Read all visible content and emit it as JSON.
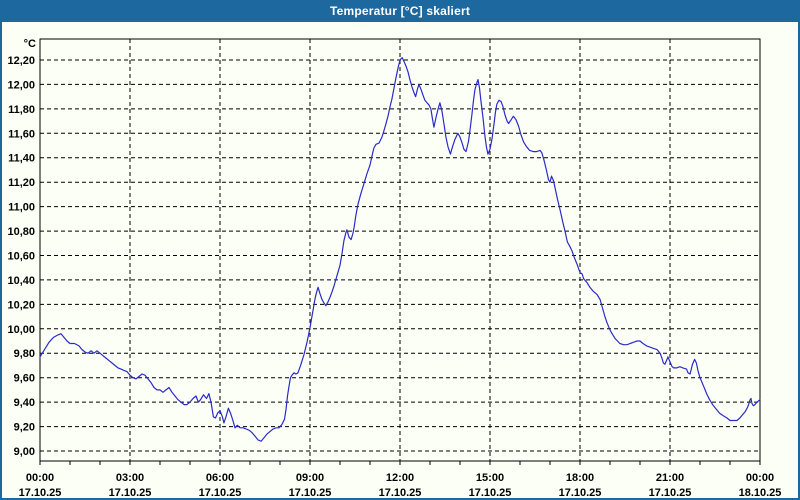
{
  "window": {
    "title": "Temperatur [°C] skaliert",
    "titlebar_color": "#1D689E",
    "border_color": "#1D689E",
    "background_color": "#FCFFF6",
    "title_text_color": "#FFFFFF"
  },
  "chart_data": {
    "type": "line",
    "title": "Temperatur [°C] skaliert",
    "unit_label": "°C",
    "line_color": "#2B2BC8",
    "grid_color": "#000000",
    "grid_style": "dashed",
    "legend": "none",
    "axes": {
      "y": {
        "min": 9.0,
        "max": 12.2,
        "tick_step": 0.2,
        "tick_labels": [
          "9,00",
          "9,20",
          "9,40",
          "9,60",
          "9,80",
          "10,00",
          "10,20",
          "10,40",
          "10,60",
          "10,80",
          "11,00",
          "11,20",
          "11,40",
          "11,60",
          "11,80",
          "12,00",
          "12,20"
        ]
      },
      "x": {
        "min_hours": 0,
        "max_hours": 24,
        "minor_tick_hours": 1,
        "grid_interval_hours": 3,
        "major_ticks": [
          {
            "h": 0,
            "time": "00:00",
            "date": "17.10.25"
          },
          {
            "h": 3,
            "time": "03:00",
            "date": "17.10.25"
          },
          {
            "h": 6,
            "time": "06:00",
            "date": "17.10.25"
          },
          {
            "h": 9,
            "time": "09:00",
            "date": "17.10.25"
          },
          {
            "h": 12,
            "time": "12:00",
            "date": "17.10.25"
          },
          {
            "h": 15,
            "time": "15:00",
            "date": "17.10.25"
          },
          {
            "h": 18,
            "time": "18:00",
            "date": "17.10.25"
          },
          {
            "h": 21,
            "time": "21:00",
            "date": "17.10.25"
          },
          {
            "h": 24,
            "time": "00:00",
            "date": "18.10.25"
          }
        ]
      }
    },
    "series": [
      {
        "name": "Temperatur",
        "points": [
          [
            0.0,
            9.77
          ],
          [
            0.15,
            9.83
          ],
          [
            0.3,
            9.89
          ],
          [
            0.45,
            9.93
          ],
          [
            0.6,
            9.95
          ],
          [
            0.7,
            9.96
          ],
          [
            0.8,
            9.93
          ],
          [
            0.9,
            9.9
          ],
          [
            1.0,
            9.88
          ],
          [
            1.15,
            9.88
          ],
          [
            1.3,
            9.86
          ],
          [
            1.4,
            9.83
          ],
          [
            1.5,
            9.81
          ],
          [
            1.6,
            9.8
          ],
          [
            1.7,
            9.82
          ],
          [
            1.8,
            9.8
          ],
          [
            1.9,
            9.82
          ],
          [
            2.0,
            9.8
          ],
          [
            2.1,
            9.78
          ],
          [
            2.2,
            9.76
          ],
          [
            2.3,
            9.74
          ],
          [
            2.4,
            9.72
          ],
          [
            2.5,
            9.7
          ],
          [
            2.6,
            9.68
          ],
          [
            2.7,
            9.67
          ],
          [
            2.8,
            9.66
          ],
          [
            2.9,
            9.65
          ],
          [
            3.0,
            9.62
          ],
          [
            3.1,
            9.6
          ],
          [
            3.2,
            9.59
          ],
          [
            3.3,
            9.61
          ],
          [
            3.4,
            9.63
          ],
          [
            3.5,
            9.62
          ],
          [
            3.6,
            9.59
          ],
          [
            3.7,
            9.56
          ],
          [
            3.8,
            9.52
          ],
          [
            3.9,
            9.5
          ],
          [
            4.0,
            9.5
          ],
          [
            4.1,
            9.48
          ],
          [
            4.2,
            9.5
          ],
          [
            4.3,
            9.52
          ],
          [
            4.4,
            9.48
          ],
          [
            4.5,
            9.45
          ],
          [
            4.6,
            9.42
          ],
          [
            4.7,
            9.4
          ],
          [
            4.8,
            9.38
          ],
          [
            4.9,
            9.38
          ],
          [
            5.0,
            9.4
          ],
          [
            5.1,
            9.43
          ],
          [
            5.2,
            9.45
          ],
          [
            5.28,
            9.4
          ],
          [
            5.35,
            9.42
          ],
          [
            5.45,
            9.46
          ],
          [
            5.55,
            9.43
          ],
          [
            5.63,
            9.47
          ],
          [
            5.7,
            9.4
          ],
          [
            5.78,
            9.28
          ],
          [
            5.85,
            9.27
          ],
          [
            5.92,
            9.31
          ],
          [
            6.0,
            9.33
          ],
          [
            6.08,
            9.28
          ],
          [
            6.13,
            9.23
          ],
          [
            6.2,
            9.28
          ],
          [
            6.28,
            9.35
          ],
          [
            6.35,
            9.31
          ],
          [
            6.43,
            9.25
          ],
          [
            6.5,
            9.19
          ],
          [
            6.58,
            9.21
          ],
          [
            6.67,
            9.19
          ],
          [
            6.77,
            9.19
          ],
          [
            6.87,
            9.18
          ],
          [
            6.97,
            9.17
          ],
          [
            7.07,
            9.15
          ],
          [
            7.17,
            9.12
          ],
          [
            7.27,
            9.09
          ],
          [
            7.37,
            9.08
          ],
          [
            7.47,
            9.11
          ],
          [
            7.57,
            9.14
          ],
          [
            7.67,
            9.16
          ],
          [
            7.77,
            9.18
          ],
          [
            7.87,
            9.19
          ],
          [
            7.97,
            9.19
          ],
          [
            8.07,
            9.22
          ],
          [
            8.15,
            9.26
          ],
          [
            8.2,
            9.34
          ],
          [
            8.25,
            9.45
          ],
          [
            8.3,
            9.53
          ],
          [
            8.35,
            9.6
          ],
          [
            8.4,
            9.62
          ],
          [
            8.47,
            9.64
          ],
          [
            8.53,
            9.63
          ],
          [
            8.6,
            9.64
          ],
          [
            8.7,
            9.71
          ],
          [
            8.8,
            9.79
          ],
          [
            8.9,
            9.89
          ],
          [
            9.0,
            10.01
          ],
          [
            9.05,
            10.08
          ],
          [
            9.1,
            10.15
          ],
          [
            9.17,
            10.25
          ],
          [
            9.22,
            10.3
          ],
          [
            9.27,
            10.34
          ],
          [
            9.33,
            10.29
          ],
          [
            9.4,
            10.24
          ],
          [
            9.47,
            10.21
          ],
          [
            9.53,
            10.19
          ],
          [
            9.6,
            10.22
          ],
          [
            9.67,
            10.26
          ],
          [
            9.73,
            10.3
          ],
          [
            9.8,
            10.35
          ],
          [
            9.87,
            10.41
          ],
          [
            9.93,
            10.46
          ],
          [
            10.0,
            10.52
          ],
          [
            10.07,
            10.62
          ],
          [
            10.13,
            10.72
          ],
          [
            10.2,
            10.79
          ],
          [
            10.23,
            10.81
          ],
          [
            10.3,
            10.75
          ],
          [
            10.37,
            10.73
          ],
          [
            10.43,
            10.78
          ],
          [
            10.47,
            10.83
          ],
          [
            10.53,
            10.93
          ],
          [
            10.6,
            11.02
          ],
          [
            10.7,
            11.11
          ],
          [
            10.8,
            11.19
          ],
          [
            10.9,
            11.27
          ],
          [
            11.0,
            11.34
          ],
          [
            11.08,
            11.43
          ],
          [
            11.13,
            11.48
          ],
          [
            11.2,
            11.51
          ],
          [
            11.3,
            11.52
          ],
          [
            11.4,
            11.57
          ],
          [
            11.5,
            11.65
          ],
          [
            11.6,
            11.74
          ],
          [
            11.67,
            11.82
          ],
          [
            11.73,
            11.88
          ],
          [
            11.8,
            11.97
          ],
          [
            11.87,
            12.06
          ],
          [
            11.93,
            12.13
          ],
          [
            12.0,
            12.2
          ],
          [
            12.07,
            12.22
          ],
          [
            12.13,
            12.19
          ],
          [
            12.2,
            12.15
          ],
          [
            12.27,
            12.1
          ],
          [
            12.33,
            12.04
          ],
          [
            12.4,
            11.98
          ],
          [
            12.47,
            11.93
          ],
          [
            12.52,
            11.9
          ],
          [
            12.58,
            11.96
          ],
          [
            12.63,
            12.0
          ],
          [
            12.7,
            11.96
          ],
          [
            12.77,
            11.91
          ],
          [
            12.83,
            11.87
          ],
          [
            12.9,
            11.85
          ],
          [
            12.97,
            11.83
          ],
          [
            13.03,
            11.8
          ],
          [
            13.08,
            11.72
          ],
          [
            13.13,
            11.65
          ],
          [
            13.2,
            11.73
          ],
          [
            13.27,
            11.8
          ],
          [
            13.33,
            11.85
          ],
          [
            13.4,
            11.78
          ],
          [
            13.47,
            11.67
          ],
          [
            13.53,
            11.57
          ],
          [
            13.6,
            11.49
          ],
          [
            13.68,
            11.43
          ],
          [
            13.75,
            11.49
          ],
          [
            13.83,
            11.55
          ],
          [
            13.93,
            11.6
          ],
          [
            14.0,
            11.57
          ],
          [
            14.07,
            11.52
          ],
          [
            14.13,
            11.47
          ],
          [
            14.2,
            11.45
          ],
          [
            14.28,
            11.53
          ],
          [
            14.33,
            11.62
          ],
          [
            14.4,
            11.76
          ],
          [
            14.45,
            11.87
          ],
          [
            14.5,
            11.96
          ],
          [
            14.57,
            12.02
          ],
          [
            14.6,
            12.04
          ],
          [
            14.65,
            11.97
          ],
          [
            14.7,
            11.86
          ],
          [
            14.77,
            11.72
          ],
          [
            14.83,
            11.58
          ],
          [
            14.88,
            11.49
          ],
          [
            14.93,
            11.43
          ],
          [
            15.0,
            11.47
          ],
          [
            15.07,
            11.56
          ],
          [
            15.13,
            11.67
          ],
          [
            15.18,
            11.77
          ],
          [
            15.23,
            11.84
          ],
          [
            15.3,
            11.87
          ],
          [
            15.37,
            11.86
          ],
          [
            15.43,
            11.82
          ],
          [
            15.5,
            11.75
          ],
          [
            15.57,
            11.7
          ],
          [
            15.62,
            11.68
          ],
          [
            15.7,
            11.71
          ],
          [
            15.78,
            11.74
          ],
          [
            15.87,
            11.71
          ],
          [
            15.95,
            11.66
          ],
          [
            16.03,
            11.59
          ],
          [
            16.12,
            11.53
          ],
          [
            16.22,
            11.49
          ],
          [
            16.32,
            11.46
          ],
          [
            16.45,
            11.45
          ],
          [
            16.55,
            11.45
          ],
          [
            16.67,
            11.46
          ],
          [
            16.73,
            11.44
          ],
          [
            16.8,
            11.38
          ],
          [
            16.88,
            11.3
          ],
          [
            16.95,
            11.22
          ],
          [
            17.0,
            11.2
          ],
          [
            17.05,
            11.25
          ],
          [
            17.12,
            11.21
          ],
          [
            17.18,
            11.14
          ],
          [
            17.25,
            11.06
          ],
          [
            17.33,
            10.98
          ],
          [
            17.42,
            10.88
          ],
          [
            17.5,
            10.8
          ],
          [
            17.58,
            10.71
          ],
          [
            17.65,
            10.68
          ],
          [
            17.73,
            10.64
          ],
          [
            17.8,
            10.59
          ],
          [
            17.9,
            10.53
          ],
          [
            18.0,
            10.46
          ],
          [
            18.07,
            10.45
          ],
          [
            18.12,
            10.41
          ],
          [
            18.23,
            10.38
          ],
          [
            18.33,
            10.34
          ],
          [
            18.43,
            10.31
          ],
          [
            18.57,
            10.28
          ],
          [
            18.67,
            10.24
          ],
          [
            18.75,
            10.17
          ],
          [
            18.83,
            10.1
          ],
          [
            18.9,
            10.05
          ],
          [
            19.0,
            9.99
          ],
          [
            19.07,
            9.96
          ],
          [
            19.17,
            9.92
          ],
          [
            19.25,
            9.9
          ],
          [
            19.33,
            9.88
          ],
          [
            19.45,
            9.87
          ],
          [
            19.57,
            9.87
          ],
          [
            19.67,
            9.88
          ],
          [
            19.78,
            9.89
          ],
          [
            19.9,
            9.9
          ],
          [
            20.0,
            9.9
          ],
          [
            20.1,
            9.88
          ],
          [
            20.22,
            9.86
          ],
          [
            20.33,
            9.85
          ],
          [
            20.45,
            9.84
          ],
          [
            20.57,
            9.83
          ],
          [
            20.67,
            9.8
          ],
          [
            20.73,
            9.76
          ],
          [
            20.78,
            9.72
          ],
          [
            20.83,
            9.71
          ],
          [
            20.9,
            9.75
          ],
          [
            20.93,
            9.77
          ],
          [
            21.0,
            9.73
          ],
          [
            21.07,
            9.69
          ],
          [
            21.12,
            9.68
          ],
          [
            21.22,
            9.68
          ],
          [
            21.33,
            9.69
          ],
          [
            21.43,
            9.68
          ],
          [
            21.55,
            9.67
          ],
          [
            21.6,
            9.64
          ],
          [
            21.67,
            9.63
          ],
          [
            21.75,
            9.71
          ],
          [
            21.82,
            9.75
          ],
          [
            21.88,
            9.72
          ],
          [
            21.93,
            9.66
          ],
          [
            22.0,
            9.6
          ],
          [
            22.07,
            9.56
          ],
          [
            22.12,
            9.53
          ],
          [
            22.22,
            9.47
          ],
          [
            22.32,
            9.42
          ],
          [
            22.42,
            9.38
          ],
          [
            22.55,
            9.34
          ],
          [
            22.65,
            9.31
          ],
          [
            22.77,
            9.29
          ],
          [
            22.9,
            9.27
          ],
          [
            23.0,
            9.25
          ],
          [
            23.12,
            9.25
          ],
          [
            23.23,
            9.25
          ],
          [
            23.33,
            9.27
          ],
          [
            23.43,
            9.3
          ],
          [
            23.5,
            9.32
          ],
          [
            23.57,
            9.35
          ],
          [
            23.62,
            9.38
          ],
          [
            23.67,
            9.42
          ],
          [
            23.7,
            9.43
          ],
          [
            23.73,
            9.39
          ],
          [
            23.78,
            9.37
          ],
          [
            23.83,
            9.38
          ],
          [
            23.9,
            9.4
          ],
          [
            24.0,
            9.42
          ]
        ]
      }
    ]
  }
}
